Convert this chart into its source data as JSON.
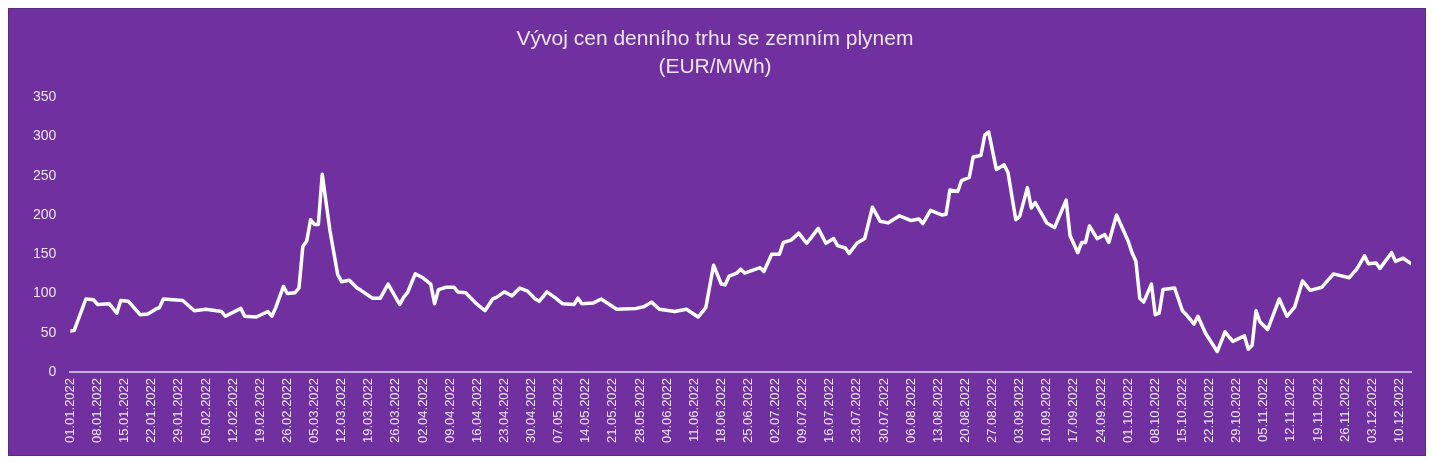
{
  "chart_data": {
    "type": "line",
    "title": "Vývoj cen denního trhu se zemním plynem",
    "subtitle": "(EUR/MWh)",
    "x": [
      "2022-01-01",
      "2022-01-02",
      "2022-01-05",
      "2022-01-07",
      "2022-01-08",
      "2022-01-11",
      "2022-01-13",
      "2022-01-14",
      "2022-01-16",
      "2022-01-19",
      "2022-01-21",
      "2022-01-23",
      "2022-01-24",
      "2022-01-25",
      "2022-01-30",
      "2022-02-02",
      "2022-02-05",
      "2022-02-09",
      "2022-02-10",
      "2022-02-14",
      "2022-02-15",
      "2022-02-18",
      "2022-02-21",
      "2022-02-22",
      "2022-02-23",
      "2022-02-25",
      "2022-02-26",
      "2022-02-28",
      "2022-03-01",
      "2022-03-02",
      "2022-03-03",
      "2022-03-04",
      "2022-03-05",
      "2022-03-06",
      "2022-03-07",
      "2022-03-09",
      "2022-03-11",
      "2022-03-12",
      "2022-03-14",
      "2022-03-16",
      "2022-03-17",
      "2022-03-20",
      "2022-03-22",
      "2022-03-24",
      "2022-03-27",
      "2022-03-28",
      "2022-03-29",
      "2022-03-31",
      "2022-04-02",
      "2022-04-04",
      "2022-04-05",
      "2022-04-06",
      "2022-04-08",
      "2022-04-10",
      "2022-04-11",
      "2022-04-13",
      "2022-04-16",
      "2022-04-18",
      "2022-04-20",
      "2022-04-21",
      "2022-04-23",
      "2022-04-25",
      "2022-04-27",
      "2022-04-29",
      "2022-05-01",
      "2022-05-02",
      "2022-05-04",
      "2022-05-06",
      "2022-05-08",
      "2022-05-11",
      "2022-05-12",
      "2022-05-13",
      "2022-05-16",
      "2022-05-18",
      "2022-05-22",
      "2022-05-27",
      "2022-05-29",
      "2022-05-31",
      "2022-06-02",
      "2022-06-06",
      "2022-06-09",
      "2022-06-12",
      "2022-06-14",
      "2022-06-16",
      "2022-06-18",
      "2022-06-19",
      "2022-06-20",
      "2022-06-22",
      "2022-06-23",
      "2022-06-24",
      "2022-06-28",
      "2022-06-29",
      "2022-07-01",
      "2022-07-03",
      "2022-07-04",
      "2022-07-06",
      "2022-07-08",
      "2022-07-10",
      "2022-07-11",
      "2022-07-13",
      "2022-07-15",
      "2022-07-17",
      "2022-07-18",
      "2022-07-20",
      "2022-07-21",
      "2022-07-23",
      "2022-07-25",
      "2022-07-27",
      "2022-07-29",
      "2022-07-31",
      "2022-08-03",
      "2022-08-06",
      "2022-08-08",
      "2022-08-09",
      "2022-08-11",
      "2022-08-14",
      "2022-08-15",
      "2022-08-16",
      "2022-08-18",
      "2022-08-19",
      "2022-08-21",
      "2022-08-22",
      "2022-08-24",
      "2022-08-25",
      "2022-08-26",
      "2022-08-28",
      "2022-08-30",
      "2022-08-31",
      "2022-09-02",
      "2022-09-03",
      "2022-09-05",
      "2022-09-06",
      "2022-09-07",
      "2022-09-10",
      "2022-09-11",
      "2022-09-12",
      "2022-09-15",
      "2022-09-16",
      "2022-09-18",
      "2022-09-19",
      "2022-09-20",
      "2022-09-21",
      "2022-09-23",
      "2022-09-25",
      "2022-09-26",
      "2022-09-28",
      "2022-10-01",
      "2022-10-02",
      "2022-10-03",
      "2022-10-04",
      "2022-10-05",
      "2022-10-07",
      "2022-10-08",
      "2022-10-09",
      "2022-10-10",
      "2022-10-13",
      "2022-10-15",
      "2022-10-16",
      "2022-10-18",
      "2022-10-19",
      "2022-10-21",
      "2022-10-24",
      "2022-10-26",
      "2022-10-28",
      "2022-10-31",
      "2022-11-01",
      "2022-11-02",
      "2022-11-03",
      "2022-11-04",
      "2022-11-06",
      "2022-11-09",
      "2022-11-11",
      "2022-11-13",
      "2022-11-15",
      "2022-11-17",
      "2022-11-20",
      "2022-11-23",
      "2022-11-27",
      "2022-11-29",
      "2022-12-01",
      "2022-12-02",
      "2022-12-04",
      "2022-12-05",
      "2022-12-08",
      "2022-12-09",
      "2022-12-11",
      "2022-12-13"
    ],
    "series": [
      {
        "color": "#ffffff",
        "values": [
          52,
          53,
          93,
          92,
          86,
          87,
          75,
          91,
          90,
          73,
          74,
          80,
          82,
          93,
          91,
          78,
          80,
          77,
          71,
          81,
          71,
          70,
          77,
          71,
          82,
          109,
          100,
          101,
          107,
          160,
          167,
          194,
          188,
          188,
          252,
          180,
          124,
          115,
          117,
          107,
          104,
          94,
          94,
          112,
          86,
          95,
          101,
          125,
          120,
          112,
          87,
          105,
          108,
          108,
          102,
          101,
          86,
          78,
          93,
          95,
          102,
          97,
          107,
          103,
          93,
          90,
          102,
          95,
          87,
          86,
          94,
          87,
          88,
          93,
          80,
          81,
          83,
          89,
          80,
          77,
          80,
          70,
          82,
          136,
          112,
          111,
          122,
          126,
          131,
          126,
          133,
          128,
          150,
          150,
          165,
          168,
          177,
          164,
          170,
          183,
          164,
          170,
          161,
          158,
          151,
          164,
          170,
          210,
          192,
          190,
          199,
          193,
          195,
          189,
          206,
          200,
          201,
          232,
          230,
          244,
          248,
          274,
          276,
          302,
          306,
          258,
          264,
          254,
          194,
          198,
          235,
          209,
          216,
          190,
          187,
          184,
          219,
          174,
          152,
          165,
          165,
          186,
          170,
          175,
          165,
          200,
          167,
          152,
          141,
          94,
          89,
          112,
          73,
          75,
          105,
          107,
          78,
          73,
          61,
          71,
          49,
          26,
          51,
          39,
          46,
          29,
          34,
          78,
          64,
          54,
          93,
          71,
          83,
          116,
          104,
          108,
          125,
          120,
          131,
          148,
          138,
          139,
          132,
          152,
          141,
          145,
          138
        ]
      }
    ],
    "xlim": [
      "2022-01-01",
      "2022-12-13"
    ],
    "xticks": [
      {
        "value": "2022-01-01",
        "label": "01.01.2022"
      },
      {
        "value": "2022-01-08",
        "label": "08.01.2022"
      },
      {
        "value": "2022-01-15",
        "label": "15.01.2022"
      },
      {
        "value": "2022-01-22",
        "label": "22.01.2022"
      },
      {
        "value": "2022-01-29",
        "label": "29.01.2022"
      },
      {
        "value": "2022-02-05",
        "label": "05.02.2022"
      },
      {
        "value": "2022-02-12",
        "label": "12.02.2022"
      },
      {
        "value": "2022-02-19",
        "label": "19.02.2022"
      },
      {
        "value": "2022-02-26",
        "label": "26.02.2022"
      },
      {
        "value": "2022-03-05",
        "label": "05.03.2022"
      },
      {
        "value": "2022-03-12",
        "label": "12.03.2022"
      },
      {
        "value": "2022-03-19",
        "label": "19.03.2022"
      },
      {
        "value": "2022-03-26",
        "label": "26.03.2022"
      },
      {
        "value": "2022-04-02",
        "label": "02.04.2022"
      },
      {
        "value": "2022-04-09",
        "label": "09.04.2022"
      },
      {
        "value": "2022-04-16",
        "label": "16.04.2022"
      },
      {
        "value": "2022-04-23",
        "label": "23.04.2022"
      },
      {
        "value": "2022-04-30",
        "label": "30.04.2022"
      },
      {
        "value": "2022-05-07",
        "label": "07.05.2022"
      },
      {
        "value": "2022-05-14",
        "label": "14.05.2022"
      },
      {
        "value": "2022-05-21",
        "label": "21.05.2022"
      },
      {
        "value": "2022-05-28",
        "label": "28.05.2022"
      },
      {
        "value": "2022-06-04",
        "label": "04.06.2022"
      },
      {
        "value": "2022-06-11",
        "label": "11.06.2022"
      },
      {
        "value": "2022-06-18",
        "label": "18.06.2022"
      },
      {
        "value": "2022-06-25",
        "label": "25.06.2022"
      },
      {
        "value": "2022-07-02",
        "label": "02.07.2022"
      },
      {
        "value": "2022-07-09",
        "label": "09.07.2022"
      },
      {
        "value": "2022-07-16",
        "label": "16.07.2022"
      },
      {
        "value": "2022-07-23",
        "label": "23.07.2022"
      },
      {
        "value": "2022-07-30",
        "label": "30.07.2022"
      },
      {
        "value": "2022-08-06",
        "label": "06.08.2022"
      },
      {
        "value": "2022-08-13",
        "label": "13.08.2022"
      },
      {
        "value": "2022-08-20",
        "label": "20.08.2022"
      },
      {
        "value": "2022-08-27",
        "label": "27.08.2022"
      },
      {
        "value": "2022-09-03",
        "label": "03.09.2022"
      },
      {
        "value": "2022-09-10",
        "label": "10.09.2022"
      },
      {
        "value": "2022-09-17",
        "label": "17.09.2022"
      },
      {
        "value": "2022-09-24",
        "label": "24.09.2022"
      },
      {
        "value": "2022-10-01",
        "label": "01.10.2022"
      },
      {
        "value": "2022-10-08",
        "label": "08.10.2022"
      },
      {
        "value": "2022-10-15",
        "label": "15.10.2022"
      },
      {
        "value": "2022-10-22",
        "label": "22.10.2022"
      },
      {
        "value": "2022-10-29",
        "label": "29.10.2022"
      },
      {
        "value": "2022-11-05",
        "label": "05.11.2022"
      },
      {
        "value": "2022-11-12",
        "label": "12.11.2022"
      },
      {
        "value": "2022-11-19",
        "label": "19.11.2022"
      },
      {
        "value": "2022-11-26",
        "label": "26.11.2022"
      },
      {
        "value": "2022-12-03",
        "label": "03.12.2022"
      },
      {
        "value": "2022-12-10",
        "label": "10.12.2022"
      }
    ],
    "ylim": [
      0,
      350
    ],
    "yticks": [
      0,
      50,
      100,
      150,
      200,
      250,
      300,
      350
    ],
    "grid": false,
    "legend": false,
    "marker": "none",
    "line_style": "solid"
  }
}
